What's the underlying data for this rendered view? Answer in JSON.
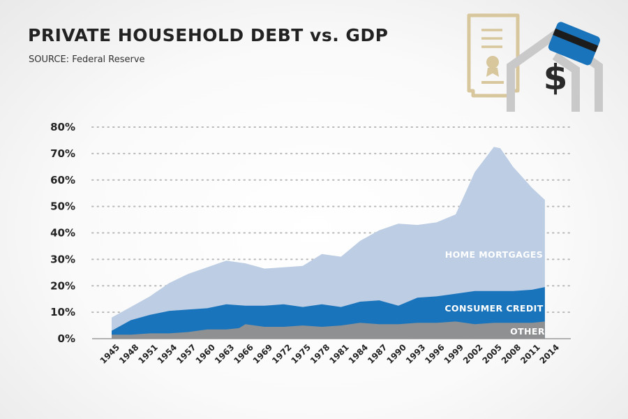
{
  "header": {
    "title": "PRIVATE HOUSEHOLD DEBT vs. GDP",
    "subtitle_prefix": "SOURCE:",
    "subtitle_value": "Federal Reserve"
  },
  "icons": [
    "certificate-icon",
    "house-arrow-icon",
    "dollar-sign-icon",
    "credit-card-icon"
  ],
  "colors": {
    "mortgages": "#bccde4",
    "consumer_credit": "#1a74bb",
    "other": "#8f9092",
    "grid": "#b8b8b8",
    "certificate": "#d8c79d",
    "house": "#c9c9c9",
    "card": "#1a74bb",
    "dollar": "#2a2a2a"
  },
  "chart_data": {
    "type": "area",
    "stacked": true,
    "x_label_years": [
      1945,
      1948,
      1951,
      1954,
      1957,
      1960,
      1963,
      1966,
      1969,
      1972,
      1975,
      1978,
      1981,
      1984,
      1987,
      1990,
      1993,
      1996,
      1999,
      2002,
      2005,
      2008,
      2011,
      2014
    ],
    "ylim": [
      0,
      80
    ],
    "y_ticks": [
      "0%",
      "10%",
      "20%",
      "30%",
      "40%",
      "50%",
      "60%",
      "70%",
      "80%"
    ],
    "grid": "horizontal-dotted",
    "series": [
      {
        "name": "OTHER",
        "x": [
          1945,
          1948,
          1951,
          1954,
          1957,
          1960,
          1963,
          1965,
          1966,
          1969,
          1972,
          1975,
          1978,
          1981,
          1984,
          1987,
          1990,
          1993,
          1996,
          1999,
          2002,
          2005,
          2008,
          2011,
          2013
        ],
        "values": [
          1.5,
          1.5,
          2,
          2,
          2.5,
          3.5,
          3.5,
          4,
          5.5,
          4.5,
          4.5,
          5,
          4.5,
          5,
          6,
          5.5,
          5.5,
          6,
          6,
          6.5,
          5.5,
          6,
          6,
          6,
          6.5
        ]
      },
      {
        "name": "CONSUMER CREDIT",
        "x": [
          1945,
          1948,
          1951,
          1954,
          1957,
          1960,
          1963,
          1966,
          1969,
          1972,
          1975,
          1978,
          1981,
          1984,
          1987,
          1990,
          1993,
          1996,
          1999,
          2002,
          2005,
          2008,
          2011,
          2013
        ],
        "values": [
          3,
          7,
          9,
          10.5,
          11,
          11.5,
          13,
          12.5,
          12.5,
          13,
          12,
          13,
          12,
          14,
          14.5,
          12.5,
          15.5,
          16,
          17,
          18,
          18,
          18,
          18.5,
          19.5
        ]
      },
      {
        "name": "HOME MORTGAGES",
        "x": [
          1945,
          1948,
          1951,
          1954,
          1957,
          1960,
          1963,
          1966,
          1969,
          1972,
          1975,
          1978,
          1981,
          1984,
          1987,
          1990,
          1993,
          1996,
          1999,
          2002,
          2005,
          2006,
          2008,
          2011,
          2013
        ],
        "values": [
          8,
          12,
          16,
          21,
          24.5,
          27,
          29.5,
          28.5,
          26.5,
          27,
          27.5,
          32,
          31,
          37,
          41,
          43.5,
          43,
          44,
          47,
          63,
          72.5,
          72,
          65,
          57,
          52.5
        ]
      }
    ]
  }
}
